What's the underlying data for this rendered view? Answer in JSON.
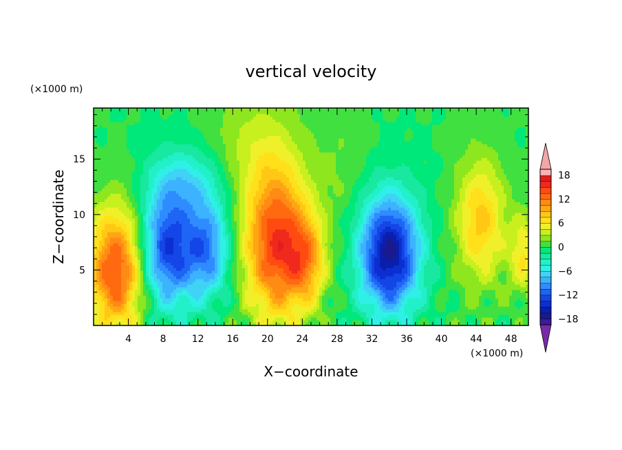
{
  "chart_data": {
    "type": "heatmap",
    "title": "vertical velocity",
    "xlabel": "X−coordinate",
    "ylabel": "Z−coordinate",
    "x_unit_label": "(×1000 m)",
    "y_unit_label": "(×1000 m)",
    "xlim": [
      0,
      50
    ],
    "ylim": [
      0,
      19.6
    ],
    "x_ticks": [
      4,
      8,
      12,
      16,
      20,
      24,
      28,
      32,
      36,
      40,
      44,
      48
    ],
    "x_tick_labels": [
      "4",
      "8",
      "12",
      "16",
      "20",
      "24",
      "28",
      "32",
      "36",
      "40",
      "44",
      "48"
    ],
    "y_ticks": [
      5,
      10,
      15
    ],
    "y_tick_labels": [
      "5",
      "10",
      "15"
    ],
    "colorbar": {
      "levels": [
        -21,
        -19.5,
        -18,
        -16.5,
        -15,
        -13.5,
        -12,
        -10.5,
        -9,
        -7.5,
        -6,
        -4.5,
        -3,
        -1.5,
        0,
        1.5,
        3,
        4.5,
        6,
        7.5,
        9,
        10.5,
        12,
        13.5,
        15,
        16.5,
        18,
        19.5,
        21
      ],
      "colors": [
        "#6A0DAD",
        "#3C1B9C",
        "#1A1A8C",
        "#0A1FAE",
        "#0B2FD0",
        "#1445E6",
        "#1E64F5",
        "#2F8CFF",
        "#3DB3FF",
        "#3FD3F5",
        "#2FF0E6",
        "#22F0C8",
        "#18E8A0",
        "#00E87A",
        "#40E040",
        "#8EE61E",
        "#C8F01E",
        "#F0F02A",
        "#FFE01A",
        "#FFC814",
        "#FFA514",
        "#FF8A14",
        "#FF6A10",
        "#FF4B10",
        "#F0281E",
        "#E01E1E",
        "#FFB0B0",
        "#F0A0A0"
      ],
      "tick_values": [
        -18,
        -12,
        -6,
        0,
        6,
        12,
        18
      ],
      "tick_labels": [
        "−18",
        "−12",
        "−6",
        "0",
        "6",
        "12",
        "18"
      ],
      "under_color": "#7A2BA8",
      "over_color": "#F4A6A6"
    },
    "features": [
      {
        "x": 2.5,
        "z": 5.0,
        "w": 3.2,
        "h": 5.5,
        "amp": 14
      },
      {
        "x": 8.5,
        "z": 7.0,
        "w": 3.0,
        "h": 5.2,
        "amp": -13
      },
      {
        "x": 13.0,
        "z": 7.0,
        "w": 2.6,
        "h": 4.5,
        "amp": -10
      },
      {
        "x": 21.0,
        "z": 7.5,
        "w": 3.6,
        "h": 6.8,
        "amp": 15
      },
      {
        "x": 24.5,
        "z": 6.0,
        "w": 2.2,
        "h": 4.0,
        "amp": 8
      },
      {
        "x": 34.0,
        "z": 6.5,
        "w": 3.4,
        "h": 5.2,
        "amp": -17
      },
      {
        "x": 44.5,
        "z": 9.5,
        "w": 2.8,
        "h": 5.5,
        "amp": 8
      },
      {
        "x": 49.5,
        "z": 6.5,
        "w": 1.8,
        "h": 3.5,
        "amp": 6
      },
      {
        "x": 28.5,
        "z": 14.0,
        "w": 3.0,
        "h": 6.0,
        "amp": 1.5
      },
      {
        "x": 18.5,
        "z": 16.5,
        "w": 5.0,
        "h": 5.0,
        "amp": 3
      },
      {
        "x": 10.5,
        "z": 13.0,
        "w": 4.0,
        "h": 3.0,
        "amp": -5
      }
    ]
  }
}
